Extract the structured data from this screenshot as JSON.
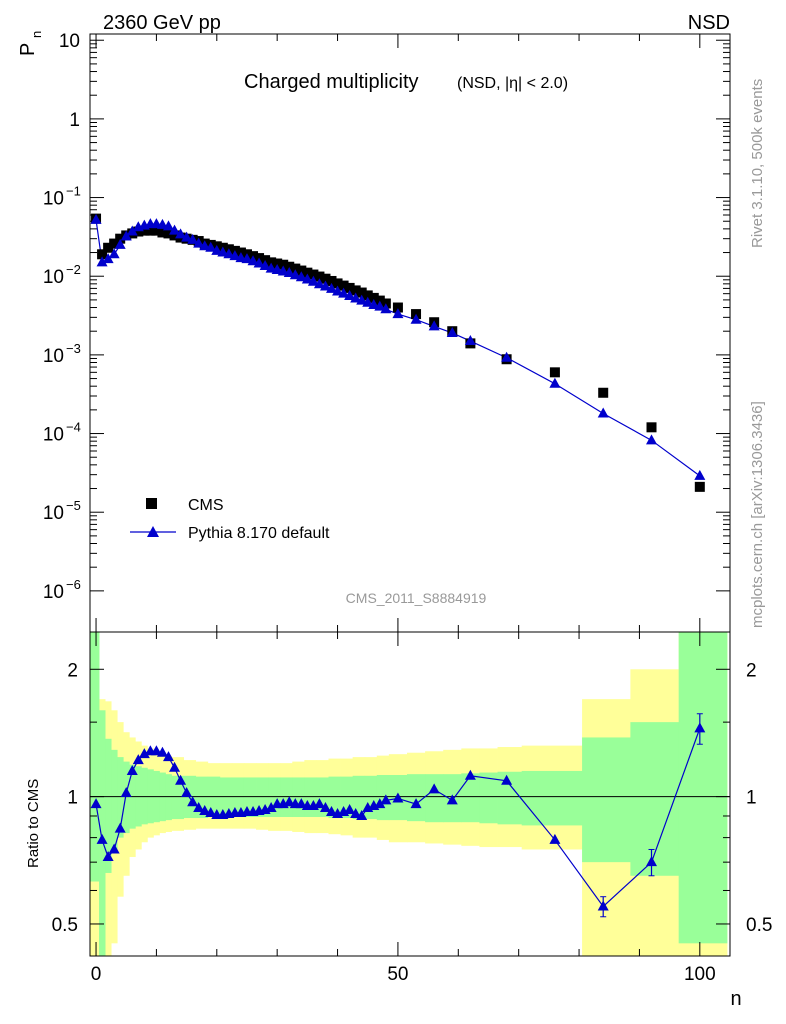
{
  "header": {
    "energy_label": "2360 GeV pp",
    "process_label": "NSD",
    "analysis_id": "CMS_2011_S8884919",
    "side_label_rivet": "Rivet 3.1.10,  500k events",
    "side_label_site": "mcplots.cern.ch [arXiv:1306.3436]"
  },
  "colors": {
    "data": "#000000",
    "mc": "#0000cc",
    "band_inner": "#99ff99",
    "band_outer": "#ffff99"
  },
  "chart_data": [
    {
      "type": "scatter",
      "panel": "main",
      "title": "Charged multiplicity",
      "title_sub": "(NSD, |η| < 2.0)",
      "ylabel_main": "P",
      "ylabel_sub": "n",
      "yscale": "log",
      "xlim": [
        -1,
        105
      ],
      "ylim": [
        3e-07,
        12
      ],
      "y_ticks": [
        {
          "value": 1e-06,
          "base": "10",
          "exp": "−6"
        },
        {
          "value": 1e-05,
          "base": "10",
          "exp": "−5"
        },
        {
          "value": 0.0001,
          "base": "10",
          "exp": "−4"
        },
        {
          "value": 0.001,
          "base": "10",
          "exp": "−3"
        },
        {
          "value": 0.01,
          "base": "10",
          "exp": "−2"
        },
        {
          "value": 0.1,
          "base": "10",
          "exp": "−1"
        },
        {
          "value": 1,
          "base": "1",
          "exp": ""
        },
        {
          "value": 10,
          "base": "10",
          "exp": ""
        }
      ],
      "legend": [
        {
          "label": "CMS",
          "marker": "square"
        },
        {
          "label": "Pythia 8.170 default",
          "marker": "triangle-line"
        }
      ],
      "series": [
        {
          "name": "CMS",
          "x": [
            0,
            1,
            2,
            3,
            4,
            5,
            6,
            7,
            8,
            9,
            10,
            11,
            12,
            13,
            14,
            15,
            16,
            17,
            18,
            19,
            20,
            21,
            22,
            23,
            24,
            25,
            26,
            27,
            28,
            29,
            30,
            31,
            32,
            33,
            34,
            35,
            36,
            37,
            38,
            39,
            40,
            41,
            42,
            43,
            44,
            45,
            46,
            47,
            48,
            50,
            53,
            56,
            59,
            62,
            68,
            76,
            84,
            92,
            100
          ],
          "y": [
            0.054,
            0.019,
            0.023,
            0.026,
            0.03,
            0.033,
            0.035,
            0.037,
            0.038,
            0.038,
            0.038,
            0.036,
            0.035,
            0.033,
            0.031,
            0.03,
            0.029,
            0.028,
            0.026,
            0.025,
            0.024,
            0.023,
            0.022,
            0.021,
            0.02,
            0.019,
            0.018,
            0.017,
            0.016,
            0.015,
            0.0145,
            0.014,
            0.0132,
            0.0125,
            0.0118,
            0.0111,
            0.0105,
            0.0099,
            0.0093,
            0.0087,
            0.0081,
            0.0076,
            0.0071,
            0.0066,
            0.0062,
            0.0057,
            0.0053,
            0.0049,
            0.0045,
            0.004,
            0.0033,
            0.0026,
            0.002,
            0.0014,
            0.00088,
            0.0006,
            0.00033,
            0.00012,
            2.1e-05
          ]
        },
        {
          "name": "Pythia 8.170 default",
          "x": [
            0,
            1,
            2,
            3,
            4,
            5,
            6,
            7,
            8,
            9,
            10,
            11,
            12,
            13,
            14,
            15,
            16,
            17,
            18,
            19,
            20,
            21,
            22,
            23,
            24,
            25,
            26,
            27,
            28,
            29,
            30,
            31,
            32,
            33,
            34,
            35,
            36,
            37,
            38,
            39,
            40,
            41,
            42,
            43,
            44,
            45,
            46,
            47,
            48,
            50,
            53,
            56,
            59,
            62,
            68,
            76,
            84,
            92,
            100
          ],
          "y": [
            0.052,
            0.015,
            0.0165,
            0.019,
            0.025,
            0.032,
            0.037,
            0.042,
            0.044,
            0.046,
            0.046,
            0.045,
            0.043,
            0.038,
            0.034,
            0.031,
            0.029,
            0.026,
            0.024,
            0.023,
            0.021,
            0.02,
            0.019,
            0.018,
            0.017,
            0.0165,
            0.0155,
            0.0145,
            0.0135,
            0.0125,
            0.012,
            0.0115,
            0.011,
            0.0103,
            0.0097,
            0.0091,
            0.0085,
            0.0079,
            0.0074,
            0.0069,
            0.0064,
            0.006,
            0.0056,
            0.0052,
            0.0049,
            0.0046,
            0.0043,
            0.0041,
            0.0038,
            0.0033,
            0.0028,
            0.0023,
            0.0019,
            0.0015,
            0.00092,
            0.00043,
            0.00018,
            8.2e-05,
            2.9e-05
          ]
        }
      ]
    },
    {
      "type": "line",
      "panel": "ratio",
      "ylabel": "Ratio to CMS",
      "xlabel": "n",
      "yscale": "log",
      "ylim": [
        0.42,
        2.45
      ],
      "reference_line": 1,
      "y_ticks": [
        0.5,
        1,
        2
      ],
      "y_tick_labels": [
        "0.5",
        "1",
        "2"
      ],
      "x_ticks": [
        0,
        50,
        100
      ],
      "x_tick_labels": [
        "0",
        "50",
        "100"
      ],
      "bands": {
        "edges": [
          -1,
          0.5,
          1.5,
          2.5,
          3.5,
          4.5,
          5.5,
          6.5,
          7.5,
          8.5,
          9.5,
          10.5,
          11.5,
          12.5,
          14.5,
          16.5,
          18.5,
          20.5,
          22.5,
          24.5,
          26.5,
          28.5,
          30.5,
          32.5,
          34.5,
          36.5,
          38.5,
          40.5,
          42.5,
          44.5,
          46.5,
          48.5,
          51.5,
          54.5,
          57.5,
          60.5,
          63.5,
          66.5,
          70.5,
          80.5,
          88.5,
          96.5,
          104.5
        ],
        "inner_lo": [
          0.63,
          0.42,
          0.66,
          0.75,
          0.8,
          0.82,
          0.84,
          0.85,
          0.86,
          0.865,
          0.87,
          0.875,
          0.88,
          0.885,
          0.89,
          0.89,
          0.895,
          0.895,
          0.895,
          0.895,
          0.895,
          0.895,
          0.895,
          0.895,
          0.895,
          0.895,
          0.89,
          0.89,
          0.885,
          0.885,
          0.88,
          0.88,
          0.875,
          0.87,
          0.87,
          0.87,
          0.865,
          0.86,
          0.855,
          0.7,
          0.65,
          0.45
        ],
        "inner_hi": [
          2.45,
          1.6,
          1.37,
          1.29,
          1.24,
          1.21,
          1.19,
          1.18,
          1.17,
          1.16,
          1.15,
          1.14,
          1.13,
          1.12,
          1.12,
          1.115,
          1.115,
          1.11,
          1.11,
          1.11,
          1.11,
          1.11,
          1.11,
          1.11,
          1.11,
          1.11,
          1.115,
          1.115,
          1.12,
          1.12,
          1.125,
          1.125,
          1.13,
          1.13,
          1.13,
          1.135,
          1.14,
          1.145,
          1.15,
          1.38,
          1.5,
          2.45
        ],
        "outer_lo": [
          0.38,
          0.38,
          0.38,
          0.45,
          0.58,
          0.65,
          0.72,
          0.75,
          0.78,
          0.8,
          0.81,
          0.82,
          0.825,
          0.83,
          0.835,
          0.84,
          0.84,
          0.84,
          0.84,
          0.84,
          0.835,
          0.83,
          0.83,
          0.825,
          0.82,
          0.82,
          0.815,
          0.81,
          0.8,
          0.8,
          0.79,
          0.78,
          0.78,
          0.775,
          0.77,
          0.765,
          0.76,
          0.76,
          0.75,
          0.38,
          0.38,
          0.38
        ],
        "outer_hi": [
          2.45,
          1.7,
          1.68,
          1.6,
          1.5,
          1.42,
          1.38,
          1.35,
          1.32,
          1.3,
          1.28,
          1.26,
          1.25,
          1.24,
          1.22,
          1.21,
          1.2,
          1.2,
          1.2,
          1.2,
          1.2,
          1.2,
          1.2,
          1.21,
          1.22,
          1.22,
          1.23,
          1.23,
          1.24,
          1.24,
          1.25,
          1.26,
          1.27,
          1.28,
          1.29,
          1.3,
          1.3,
          1.31,
          1.32,
          1.7,
          2.0,
          2.45
        ]
      },
      "series": [
        {
          "name": "Pythia 8.170 default / CMS",
          "x": [
            0,
            1,
            2,
            3,
            4,
            5,
            6,
            7,
            8,
            9,
            10,
            11,
            12,
            13,
            14,
            15,
            16,
            17,
            18,
            19,
            20,
            21,
            22,
            23,
            24,
            25,
            26,
            27,
            28,
            29,
            30,
            31,
            32,
            33,
            34,
            35,
            36,
            37,
            38,
            39,
            40,
            41,
            42,
            43,
            44,
            45,
            46,
            47,
            48,
            50,
            53,
            56,
            59,
            62,
            68,
            76,
            84,
            92,
            100
          ],
          "y": [
            0.96,
            0.79,
            0.72,
            0.75,
            0.84,
            1.02,
            1.15,
            1.22,
            1.26,
            1.28,
            1.28,
            1.27,
            1.24,
            1.17,
            1.09,
            1.02,
            0.97,
            0.94,
            0.925,
            0.915,
            0.905,
            0.905,
            0.91,
            0.915,
            0.915,
            0.92,
            0.92,
            0.925,
            0.93,
            0.94,
            0.96,
            0.96,
            0.97,
            0.96,
            0.96,
            0.95,
            0.95,
            0.96,
            0.94,
            0.92,
            0.91,
            0.92,
            0.93,
            0.91,
            0.9,
            0.94,
            0.95,
            0.96,
            0.98,
            0.99,
            0.96,
            1.04,
            0.98,
            1.12,
            1.09,
            0.79,
            0.55,
            0.7,
            1.45
          ],
          "y_err": [
            0,
            0,
            0,
            0,
            0,
            0,
            0,
            0,
            0,
            0,
            0,
            0,
            0,
            0,
            0,
            0,
            0,
            0,
            0,
            0,
            0,
            0,
            0,
            0,
            0,
            0,
            0,
            0,
            0,
            0,
            0,
            0,
            0,
            0,
            0,
            0,
            0,
            0,
            0,
            0,
            0,
            0,
            0,
            0,
            0,
            0,
            0,
            0,
            0,
            0,
            0,
            0,
            0,
            0,
            0,
            0,
            0.03,
            0.05,
            0.12
          ]
        }
      ]
    }
  ]
}
